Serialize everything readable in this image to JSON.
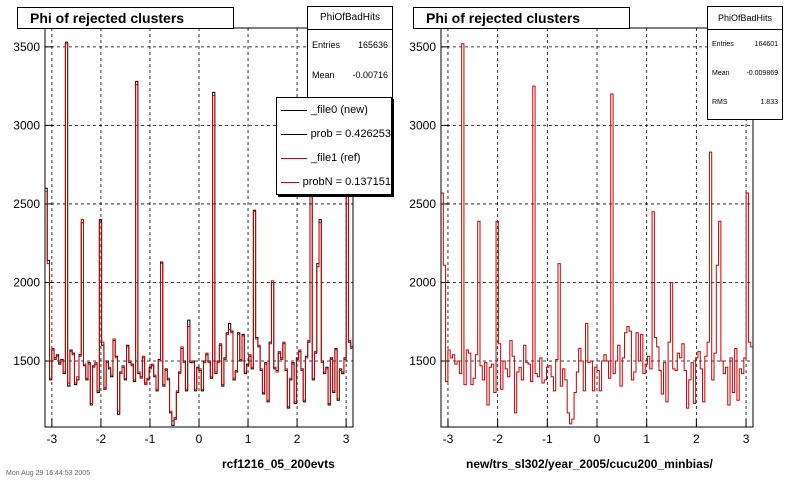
{
  "colors": {
    "new": "#000000",
    "ref": "#cc0000",
    "grid": "#000000"
  },
  "chart_data": [
    {
      "type": "line",
      "title": "Phi of rejected clusters",
      "xlabel": "rcf1216_05_200evts",
      "xlim": [
        -3.14,
        3.14
      ],
      "ylim": [
        1080,
        3620
      ],
      "xticks": [
        -3,
        -2,
        -1,
        0,
        1,
        2,
        3
      ],
      "yticks": [
        1500,
        2000,
        2500,
        3000,
        3500
      ],
      "grid": true,
      "stats": {
        "name": "PhiOfBadHits",
        "rows": [
          {
            "label": "Entries",
            "value": "165636"
          },
          {
            "label": "Mean",
            "value": "-0.00716"
          }
        ]
      },
      "legend": [
        {
          "label": "_file0 (new)",
          "color": "#000000"
        },
        {
          "label": "prob = 0.426253",
          "color": "#000000"
        },
        {
          "label": "_file1 (ref)",
          "color": "#cc0000"
        },
        {
          "label": "probN = 0.137151",
          "color": "#cc0000"
        }
      ],
      "series": [
        {
          "name": "_file0 (new)",
          "values": [
            2600,
            2140,
            1380,
            1570,
            1520,
            1540,
            1480,
            1510,
            1420,
            3530,
            1340,
            1570,
            1550,
            1350,
            1380,
            1540,
            2380,
            1470,
            1380,
            1490,
            1220,
            1470,
            1480,
            1300,
            2400,
            1600,
            1320,
            1500,
            1450,
            1400,
            1630,
            1530,
            1160,
            1430,
            1460,
            1380,
            1600,
            1490,
            1480,
            1370,
            3280,
            1420,
            1400,
            1520,
            1360,
            1380,
            1460,
            1470,
            1400,
            1310,
            1510,
            2130,
            1340,
            1450,
            1380,
            1170,
            1090,
            1130,
            1300,
            1430,
            1580,
            1500,
            1310,
            1760,
            1490,
            1500,
            1310,
            1460,
            1440,
            1310,
            1500,
            1540,
            1500,
            1390,
            3210,
            1420,
            1500,
            1600,
            1340,
            1520,
            1680,
            1740,
            1690,
            1380,
            1430,
            1680,
            1500,
            1670,
            1420,
            1480,
            1530,
            1450,
            2460,
            1650,
            1590,
            1440,
            1290,
            1490,
            1240,
            1620,
            2000,
            1450,
            1440,
            1550,
            1520,
            1610,
            1440,
            1200,
            1380,
            1490,
            1230,
            1520,
            1560,
            1450,
            1240,
            1530,
            1620,
            2840,
            1380,
            1550,
            2120,
            2400,
            1500,
            1420,
            1460,
            1220,
            1520,
            1300,
            1580,
            1250,
            1450,
            1420,
            1520,
            2580,
            1620,
            1590
          ]
        },
        {
          "name": "_file1 (ref)",
          "values": [
            2580,
            2120,
            1390,
            1580,
            1510,
            1530,
            1490,
            1500,
            1430,
            3520,
            1360,
            1560,
            1540,
            1360,
            1400,
            1530,
            2400,
            1480,
            1390,
            1480,
            1230,
            1460,
            1490,
            1310,
            2380,
            1620,
            1330,
            1490,
            1460,
            1410,
            1640,
            1520,
            1180,
            1420,
            1470,
            1390,
            1590,
            1500,
            1470,
            1380,
            3260,
            1430,
            1390,
            1530,
            1350,
            1390,
            1450,
            1480,
            1410,
            1320,
            1500,
            2120,
            1350,
            1440,
            1390,
            1180,
            1120,
            1140,
            1310,
            1420,
            1590,
            1490,
            1320,
            1720,
            1500,
            1490,
            1320,
            1450,
            1450,
            1320,
            1490,
            1550,
            1490,
            1400,
            3190,
            1430,
            1490,
            1610,
            1350,
            1510,
            1670,
            1700,
            1680,
            1390,
            1440,
            1670,
            1510,
            1660,
            1430,
            1470,
            1540,
            1460,
            2450,
            1640,
            1600,
            1450,
            1300,
            1480,
            1250,
            1610,
            2010,
            1460,
            1430,
            1560,
            1510,
            1620,
            1450,
            1210,
            1390,
            1480,
            1240,
            1510,
            1570,
            1440,
            1250,
            1520,
            1630,
            2820,
            1390,
            1560,
            2100,
            2380,
            1490,
            1430,
            1450,
            1230,
            1510,
            1310,
            1570,
            1260,
            1440,
            1430,
            1510,
            2570,
            1630,
            1580
          ]
        }
      ]
    },
    {
      "type": "line",
      "title": "Phi of rejected clusters",
      "xlabel": "new/trs_sl302/year_2005/cucu200_minbias/",
      "xlim": [
        -3.14,
        3.14
      ],
      "ylim": [
        1080,
        3620
      ],
      "xticks": [
        -3,
        -2,
        -1,
        0,
        1,
        2,
        3
      ],
      "yticks": [
        1500,
        2000,
        2500,
        3000,
        3500
      ],
      "grid": true,
      "stats": {
        "name": "PhiOfBadHits",
        "rows": [
          {
            "label": "Entries",
            "value": "164601"
          },
          {
            "label": "Mean",
            "value": "-0.009869"
          },
          {
            "label": "RMS",
            "value": "1.833"
          }
        ]
      },
      "series": [
        {
          "name": "",
          "values": [
            2570,
            2110,
            1370,
            1570,
            1520,
            1540,
            1480,
            1500,
            1420,
            3520,
            1350,
            1570,
            1550,
            1350,
            1390,
            1540,
            2390,
            1470,
            1380,
            1490,
            1220,
            1460,
            1480,
            1300,
            2390,
            1610,
            1320,
            1500,
            1450,
            1400,
            1630,
            1530,
            1170,
            1430,
            1460,
            1380,
            1600,
            1490,
            1480,
            1370,
            3250,
            1420,
            1400,
            1520,
            1360,
            1380,
            1460,
            1470,
            1400,
            1310,
            1510,
            2120,
            1340,
            1450,
            1380,
            1170,
            1100,
            1130,
            1300,
            1430,
            1580,
            1500,
            1310,
            1740,
            1490,
            1500,
            1310,
            1460,
            1440,
            1310,
            1500,
            1540,
            1500,
            1390,
            3200,
            1420,
            1500,
            1600,
            1340,
            1520,
            1680,
            1720,
            1690,
            1380,
            1430,
            1680,
            1500,
            1670,
            1420,
            1480,
            1530,
            1450,
            2450,
            1650,
            1590,
            1440,
            1290,
            1490,
            1240,
            1620,
            2000,
            1450,
            1440,
            1550,
            1520,
            1610,
            1440,
            1200,
            1380,
            1490,
            1230,
            1520,
            1560,
            1450,
            1240,
            1530,
            1620,
            2830,
            1380,
            1550,
            2110,
            2390,
            1500,
            1420,
            1460,
            1220,
            1520,
            1300,
            1580,
            1250,
            1450,
            1420,
            1520,
            2570,
            1620,
            1590
          ]
        }
      ]
    }
  ],
  "footnote": "Mon Aug 29 16:44:53 2005"
}
